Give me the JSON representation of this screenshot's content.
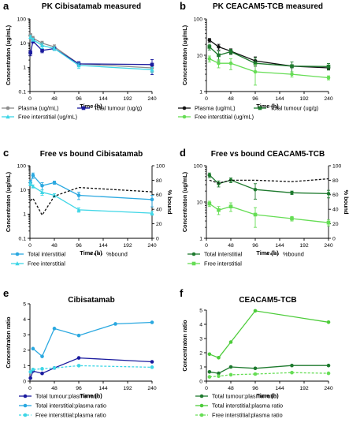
{
  "chart_data": [
    {
      "id": "a",
      "panel_label": "a",
      "type": "line",
      "title": "PK Cibisatamab measured",
      "xlabel": "Time (h)",
      "ylabel": "Concentraton (ug/mL)",
      "xlim": [
        0,
        240
      ],
      "x_ticks": [
        "0",
        "48",
        "96",
        "144",
        "192",
        "240"
      ],
      "y_scale": "log",
      "ylim": [
        0.1,
        100
      ],
      "y_ticks": [
        "0.1",
        "1",
        "10",
        "100"
      ],
      "legend_position": "bottom",
      "series": [
        {
          "name": "Plasma (ug/mL)",
          "color": "#8c8c8c",
          "marker": "circle",
          "dash": "solid",
          "x": [
            1,
            6,
            24,
            48,
            96,
            240
          ],
          "y": [
            22,
            16,
            10,
            7,
            1.4,
            0.95
          ],
          "err": [
            3,
            3,
            2,
            1.5,
            0.3,
            0.3
          ]
        },
        {
          "name": "Total tumour (ug/g)",
          "color": "#1a1a9e",
          "marker": "square",
          "dash": "solid",
          "x": [
            1,
            6,
            24,
            48,
            96,
            240
          ],
          "y": [
            4,
            12,
            5,
            6,
            1.4,
            1.3
          ],
          "err": [
            1,
            2,
            1,
            1,
            0.3,
            0.8
          ]
        },
        {
          "name": "Free interstitial (ug/mL)",
          "color": "#3ed6e6",
          "marker": "triangle",
          "dash": "solid",
          "x": [
            1,
            6,
            24,
            48,
            96,
            240
          ],
          "y": [
            18,
            14,
            8,
            6,
            1.2,
            0.8
          ],
          "err": [
            3,
            2,
            2,
            1,
            0.3,
            0.2
          ]
        }
      ]
    },
    {
      "id": "b",
      "panel_label": "b",
      "type": "line",
      "title": "PK CEACAM5-TCB measured",
      "xlabel": "Time (h)",
      "ylabel": "Concentraton (ug/mL)",
      "xlim": [
        0,
        240
      ],
      "x_ticks": [
        "0",
        "48",
        "96",
        "144",
        "192",
        "240"
      ],
      "y_scale": "log",
      "ylim": [
        1,
        100
      ],
      "y_ticks": [
        "1",
        "10",
        "100"
      ],
      "legend_position": "bottom",
      "series": [
        {
          "name": "Plasma (ug/mL)",
          "color": "#111111",
          "marker": "circle",
          "dash": "solid",
          "x": [
            6,
            24,
            48,
            96,
            168,
            240
          ],
          "y": [
            26,
            17,
            13,
            7,
            5,
            4.5
          ],
          "err": [
            3,
            3,
            2,
            2,
            0.5,
            0.5
          ]
        },
        {
          "name": "Total tumour (ug/g)",
          "color": "#1e7a2e",
          "marker": "square",
          "dash": "solid",
          "x": [
            6,
            24,
            48,
            96,
            168,
            240
          ],
          "y": [
            17,
            10,
            12.5,
            6,
            5,
            4.9
          ],
          "err": [
            3,
            3,
            2,
            2.5,
            1.5,
            1
          ]
        },
        {
          "name": "Free interstitial (ug/mL)",
          "color": "#66dd55",
          "marker": "circle",
          "dash": "solid",
          "x": [
            6,
            24,
            48,
            96,
            168,
            240
          ],
          "y": [
            8,
            6,
            6,
            3.5,
            3,
            2.4
          ],
          "err": [
            1.5,
            1.5,
            2,
            2,
            0.5,
            0.3
          ]
        }
      ]
    },
    {
      "id": "c",
      "panel_label": "c",
      "type": "line",
      "title": "Free vs bound Cibisatamab",
      "xlabel": "Time (h)",
      "ylabel": "Concentraton (ug/mL)",
      "y2label": "% bound",
      "xlim": [
        0,
        240
      ],
      "x_ticks": [
        "0",
        "48",
        "96",
        "144",
        "192",
        "240"
      ],
      "y_scale": "log",
      "ylim": [
        0.1,
        100
      ],
      "y_ticks": [
        "0.1",
        "1",
        "10",
        "100"
      ],
      "y2lim": [
        0,
        100
      ],
      "y2_ticks": [
        "0",
        "20",
        "40",
        "60",
        "80",
        "100"
      ],
      "legend_position": "bottom",
      "series": [
        {
          "name": "Total interstitial",
          "color": "#2aa8e0",
          "marker": "circle",
          "dash": "solid",
          "axis": "left",
          "x": [
            1,
            6,
            24,
            48,
            96,
            240
          ],
          "y": [
            20,
            40,
            15,
            20,
            6,
            4
          ],
          "err": [
            5,
            10,
            5,
            3,
            2,
            2
          ]
        },
        {
          "name": "Free interstitial",
          "color": "#3ed6e6",
          "marker": "triangle",
          "dash": "solid",
          "axis": "left",
          "x": [
            1,
            6,
            24,
            48,
            96,
            240
          ],
          "y": [
            18,
            14,
            8,
            6,
            1.5,
            1.1
          ],
          "err": [
            3,
            2,
            2,
            1,
            0.3,
            0.2
          ]
        },
        {
          "name": "%bound",
          "color": "#111111",
          "marker": "none",
          "dash": "dashed",
          "axis": "right",
          "x": [
            1,
            6,
            24,
            48,
            96,
            240
          ],
          "y": [
            52,
            55,
            32,
            58,
            70,
            64
          ]
        }
      ]
    },
    {
      "id": "d",
      "panel_label": "d",
      "type": "line",
      "title": "Free vs bound CEACAM5-TCB",
      "xlabel": "Time (h)",
      "ylabel": "Concentraton (ug/mL)",
      "y2label": "% bound",
      "xlim": [
        0,
        240
      ],
      "x_ticks": [
        "0",
        "48",
        "96",
        "144",
        "192",
        "240"
      ],
      "y_scale": "log",
      "ylim": [
        1,
        100
      ],
      "y_ticks": [
        "1",
        "10",
        "100"
      ],
      "y2lim": [
        0,
        100
      ],
      "y2_ticks": [
        "0",
        "20",
        "40",
        "60",
        "80",
        "100"
      ],
      "legend_position": "bottom",
      "series": [
        {
          "name": "Total interstitial",
          "color": "#1e7a2e",
          "marker": "circle",
          "dash": "solid",
          "axis": "left",
          "x": [
            6,
            24,
            48,
            96,
            168,
            240
          ],
          "y": [
            55,
            32,
            40,
            22,
            18,
            17
          ],
          "err": [
            8,
            6,
            6,
            10,
            2,
            4
          ]
        },
        {
          "name": "Free interstitial",
          "color": "#66dd55",
          "marker": "square",
          "dash": "solid",
          "axis": "left",
          "x": [
            6,
            24,
            48,
            96,
            168,
            240
          ],
          "y": [
            9,
            6,
            7.5,
            4.5,
            3.5,
            2.7
          ],
          "err": [
            1.5,
            1.5,
            2,
            2.5,
            0.5,
            0.5
          ]
        },
        {
          "name": "%bound",
          "color": "#111111",
          "marker": "none",
          "dash": "dashed",
          "axis": "right",
          "x": [
            6,
            24,
            48,
            96,
            168,
            240
          ],
          "y": [
            80,
            76,
            80,
            80,
            78,
            82
          ]
        }
      ]
    },
    {
      "id": "e",
      "panel_label": "e",
      "type": "line",
      "title": "Cibisatamab",
      "xlabel": "Time (h)",
      "ylabel": "Concentraton ratio",
      "xlim": [
        0,
        240
      ],
      "x_ticks": [
        "0",
        "48",
        "96",
        "144",
        "192",
        "240"
      ],
      "y_scale": "linear",
      "ylim": [
        0,
        5
      ],
      "y_ticks": [
        "0",
        "1",
        "2",
        "3",
        "4",
        "5"
      ],
      "legend_position": "bottom",
      "series": [
        {
          "name": "Total tumour:plasma ratio",
          "color": "#1a1a9e",
          "marker": "circle",
          "dash": "solid",
          "x": [
            1,
            6,
            24,
            48,
            96,
            240
          ],
          "y": [
            0.2,
            0.65,
            0.5,
            0.85,
            1.5,
            1.25
          ]
        },
        {
          "name": "Total interstitial:plasma ratio",
          "color": "#2aa8e0",
          "marker": "circle",
          "dash": "solid",
          "x": [
            6,
            24,
            48,
            96,
            168,
            240
          ],
          "y": [
            2.1,
            1.6,
            3.4,
            2.95,
            3.7,
            3.8
          ]
        },
        {
          "name": "Free interstitial:plasma ratio",
          "color": "#3ed6e6",
          "marker": "circle",
          "dash": "dashed",
          "x": [
            1,
            6,
            24,
            48,
            96,
            240
          ],
          "y": [
            0.6,
            0.75,
            0.8,
            0.85,
            1.0,
            0.9
          ]
        }
      ]
    },
    {
      "id": "f",
      "panel_label": "f",
      "type": "line",
      "title": "CEACAM5-TCB",
      "xlabel": "Time (h)",
      "ylabel": "Concentraton ratio",
      "xlim": [
        0,
        240
      ],
      "x_ticks": [
        "0",
        "48",
        "96",
        "144",
        "192",
        "240"
      ],
      "y_scale": "linear",
      "ylim": [
        0,
        5
      ],
      "y_ticks": [
        "0",
        "1",
        "2",
        "3",
        "4",
        "5"
      ],
      "legend_position": "bottom",
      "series": [
        {
          "name": "Total tumour:plasma ratio",
          "color": "#1e7a2e",
          "marker": "circle",
          "dash": "solid",
          "x": [
            6,
            24,
            48,
            96,
            168,
            240
          ],
          "y": [
            0.65,
            0.55,
            1.0,
            0.9,
            1.1,
            1.1
          ]
        },
        {
          "name": "Total interstitial:plasma ratio",
          "color": "#4dcc3a",
          "marker": "circle",
          "dash": "solid",
          "x": [
            6,
            24,
            48,
            96,
            240
          ],
          "y": [
            1.9,
            1.65,
            2.75,
            4.95,
            4.15
          ]
        },
        {
          "name": "Free interstitial:plasma ratio",
          "color": "#66dd55",
          "marker": "circle",
          "dash": "dashed",
          "x": [
            6,
            24,
            48,
            96,
            168,
            240
          ],
          "y": [
            0.3,
            0.35,
            0.45,
            0.5,
            0.6,
            0.55
          ]
        }
      ]
    }
  ]
}
